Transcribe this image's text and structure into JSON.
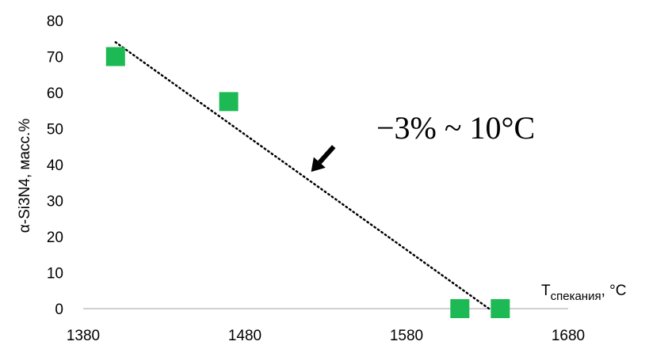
{
  "chart_data": {
    "type": "scatter",
    "ylabel": "α-Si3N4, масс.%",
    "xlabel_main": "T",
    "xlabel_sub": "спекания",
    "xlabel_unit": ", °C",
    "xlim": [
      1380,
      1680
    ],
    "ylim": [
      0,
      80
    ],
    "xticks": [
      1380,
      1480,
      1580,
      1680
    ],
    "xtick_labels": [
      "1380",
      "1480",
      "1580",
      "1680"
    ],
    "yticks": [
      0,
      10,
      20,
      30,
      40,
      50,
      60,
      70,
      80
    ],
    "ytick_labels": [
      "0",
      "10",
      "20",
      "30",
      "40",
      "50",
      "60",
      "70",
      "80"
    ],
    "grid": false,
    "series": [
      {
        "marker": "square",
        "color": "#1db954",
        "points": [
          {
            "x": 1400,
            "y": 70
          },
          {
            "x": 1470,
            "y": 57.5
          },
          {
            "x": 1613,
            "y": 0
          },
          {
            "x": 1638,
            "y": 0
          }
        ]
      }
    ],
    "trendline": {
      "style": "dotted",
      "color": "#000000",
      "from": {
        "x": 1400,
        "y": 74
      },
      "to": {
        "x": 1631,
        "y": 0
      }
    },
    "annotation": {
      "text": "−3% ~ 10°C",
      "arrow_from": {
        "x": 1535,
        "y": 45
      },
      "arrow_to": {
        "x": 1521,
        "y": 38
      }
    }
  }
}
